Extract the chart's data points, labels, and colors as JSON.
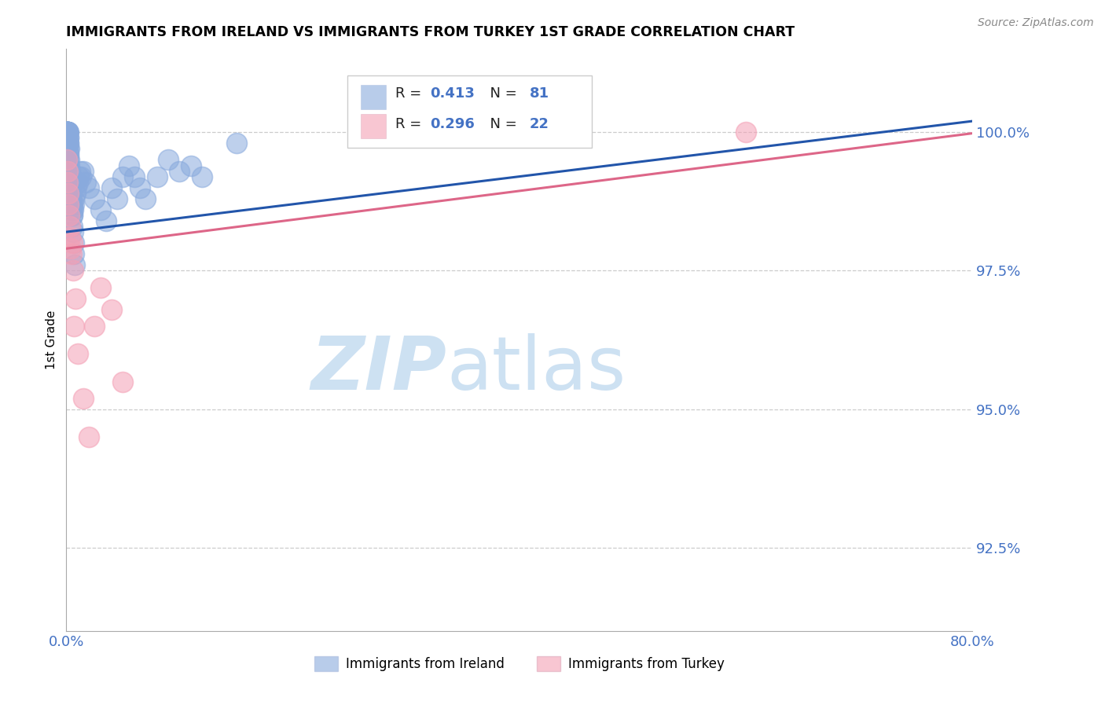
{
  "title": "IMMIGRANTS FROM IRELAND VS IMMIGRANTS FROM TURKEY 1ST GRADE CORRELATION CHART",
  "source": "Source: ZipAtlas.com",
  "ylabel": "1st Grade",
  "y_ticks": [
    92.5,
    95.0,
    97.5,
    100.0
  ],
  "y_tick_labels": [
    "92.5%",
    "95.0%",
    "97.5%",
    "100.0%"
  ],
  "xlim": [
    0.0,
    80.0
  ],
  "ylim": [
    91.0,
    101.5
  ],
  "legend_ireland": "Immigrants from Ireland",
  "legend_turkey": "Immigrants from Turkey",
  "R_ireland": 0.413,
  "N_ireland": 81,
  "R_turkey": 0.296,
  "N_turkey": 22,
  "color_ireland": "#89AADD",
  "color_turkey": "#F4A0B5",
  "color_ireland_line": "#2255AA",
  "color_turkey_line": "#DD6688",
  "color_axis_labels": "#4472C4",
  "watermark_zip": "ZIP",
  "watermark_atlas": "atlas",
  "ireland_x": [
    0.05,
    0.05,
    0.05,
    0.1,
    0.1,
    0.1,
    0.1,
    0.1,
    0.1,
    0.1,
    0.1,
    0.15,
    0.15,
    0.15,
    0.15,
    0.15,
    0.2,
    0.2,
    0.2,
    0.2,
    0.25,
    0.25,
    0.25,
    0.3,
    0.3,
    0.35,
    0.35,
    0.4,
    0.4,
    0.45,
    0.5,
    0.5,
    0.55,
    0.6,
    0.65,
    0.7,
    0.8,
    0.9,
    1.0,
    1.1,
    1.2,
    1.3,
    1.5,
    1.7,
    2.0,
    2.5,
    3.0,
    3.5,
    4.0,
    4.5,
    5.0,
    5.5,
    6.0,
    6.5,
    7.0,
    8.0,
    9.0,
    10.0,
    11.0,
    12.0,
    0.05,
    0.08,
    0.1,
    0.12,
    0.15,
    0.18,
    0.2,
    0.22,
    0.25,
    0.28,
    0.3,
    0.35,
    0.4,
    0.45,
    0.5,
    0.55,
    0.6,
    0.65,
    0.7,
    0.75,
    15.0
  ],
  "ireland_y": [
    100.0,
    100.0,
    100.0,
    100.0,
    100.0,
    100.0,
    100.0,
    100.0,
    100.0,
    100.0,
    99.8,
    99.9,
    99.8,
    99.7,
    99.6,
    99.5,
    99.6,
    99.4,
    99.3,
    99.2,
    99.3,
    99.1,
    99.0,
    99.0,
    98.9,
    99.0,
    98.8,
    98.9,
    98.7,
    98.8,
    98.7,
    98.5,
    98.6,
    98.6,
    98.7,
    98.8,
    98.9,
    99.0,
    99.1,
    99.2,
    99.3,
    99.2,
    99.3,
    99.1,
    99.0,
    98.8,
    98.6,
    98.4,
    99.0,
    98.8,
    99.2,
    99.4,
    99.2,
    99.0,
    98.8,
    99.2,
    99.5,
    99.3,
    99.4,
    99.2,
    100.0,
    100.0,
    100.0,
    100.0,
    100.0,
    99.9,
    99.8,
    99.7,
    99.5,
    99.4,
    99.3,
    99.1,
    98.9,
    98.7,
    98.5,
    98.3,
    98.2,
    98.0,
    97.8,
    97.6,
    99.8
  ],
  "turkey_x": [
    0.05,
    0.1,
    0.1,
    0.15,
    0.2,
    0.25,
    0.3,
    0.35,
    0.4,
    0.45,
    0.5,
    0.6,
    0.7,
    0.8,
    1.0,
    1.5,
    2.0,
    2.5,
    3.0,
    4.0,
    5.0,
    60.0
  ],
  "turkey_y": [
    99.5,
    99.3,
    99.1,
    98.9,
    98.7,
    98.5,
    98.3,
    98.1,
    97.9,
    97.8,
    98.0,
    97.5,
    96.5,
    97.0,
    96.0,
    95.2,
    94.5,
    96.5,
    97.2,
    96.8,
    95.5,
    100.0
  ]
}
